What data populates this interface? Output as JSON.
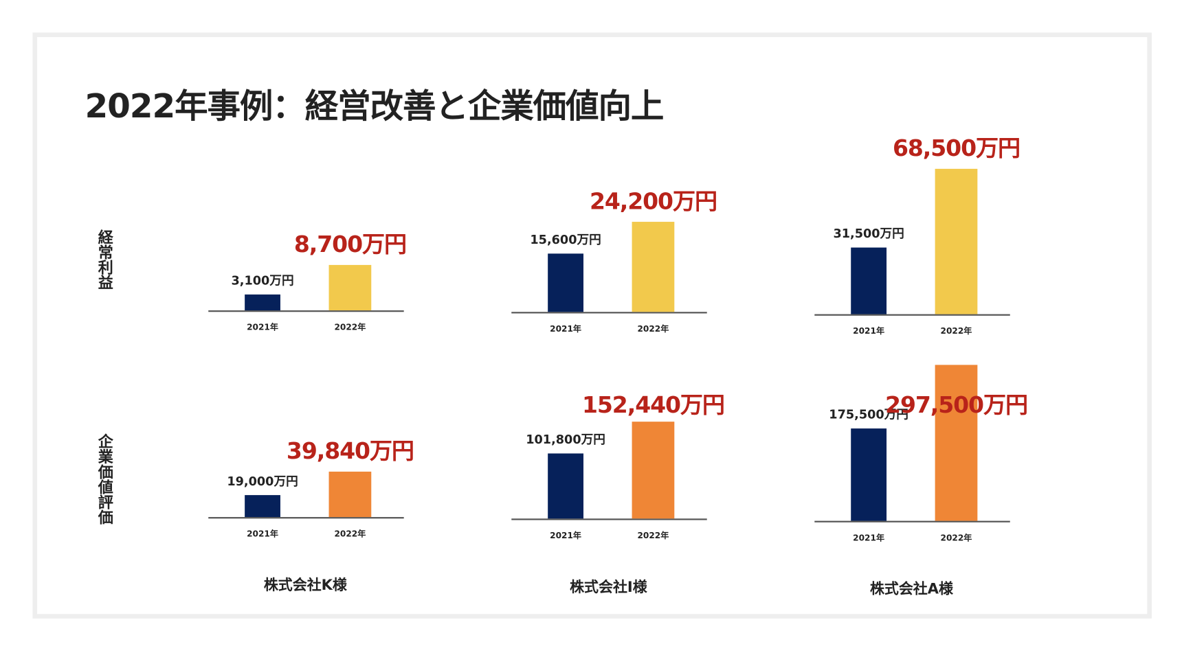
{
  "title": "2022年事例：経営改善と企業価値向上",
  "row_labels": [
    "経常利益",
    "企業価値評価"
  ],
  "companies": [
    "株式会社K様",
    "株式会社I様",
    "株式会社A様"
  ],
  "colors": {
    "bar_2021": "#06215a",
    "bar_2022_profit": "#f2c94c",
    "bar_2022_value": "#ef8636",
    "highlight_text": "#b8231a"
  },
  "chart_data": [
    {
      "type": "bar",
      "metric": "経常利益",
      "company": "株式会社K様",
      "categories": [
        "2021年",
        "2022年"
      ],
      "values": [
        3100,
        8700
      ],
      "labels": [
        "3,100万円",
        "8,700万円"
      ],
      "unit": "万円",
      "ylim": [
        0,
        29000
      ]
    },
    {
      "type": "bar",
      "metric": "経常利益",
      "company": "株式会社I様",
      "categories": [
        "2021年",
        "2022年"
      ],
      "values": [
        15600,
        24200
      ],
      "labels": [
        "15,600万円",
        "24,200万円"
      ],
      "unit": "万円",
      "ylim": [
        0,
        40700
      ]
    },
    {
      "type": "bar",
      "metric": "経常利益",
      "company": "株式会社A様",
      "categories": [
        "2021年",
        "2022年"
      ],
      "values": [
        31500,
        68500
      ],
      "labels": [
        "31,500万円",
        "68,500万円"
      ],
      "unit": "万円",
      "ylim": [
        0,
        71400
      ]
    },
    {
      "type": "bar",
      "metric": "企業価値評価",
      "company": "株式会社K様",
      "categories": [
        "2021年",
        "2022年"
      ],
      "values": [
        19000,
        39840
      ],
      "labels": [
        "19,000万円",
        "39,840万円"
      ],
      "unit": "万円",
      "ylim": [
        0,
        132800
      ]
    },
    {
      "type": "bar",
      "metric": "企業価値評価",
      "company": "株式会社I様",
      "categories": [
        "2021年",
        "2022年"
      ],
      "values": [
        101800,
        152440
      ],
      "labels": [
        "101,800万円",
        "152,440万円"
      ],
      "unit": "万円",
      "ylim": [
        0,
        238000
      ]
    },
    {
      "type": "bar",
      "metric": "企業価値評価",
      "company": "株式会社A様",
      "categories": [
        "2021年",
        "2022年"
      ],
      "values": [
        175500,
        297500
      ],
      "labels": [
        "175,500万円",
        "297,500万円"
      ],
      "unit": "万円",
      "ylim": [
        0,
        288800
      ]
    }
  ]
}
